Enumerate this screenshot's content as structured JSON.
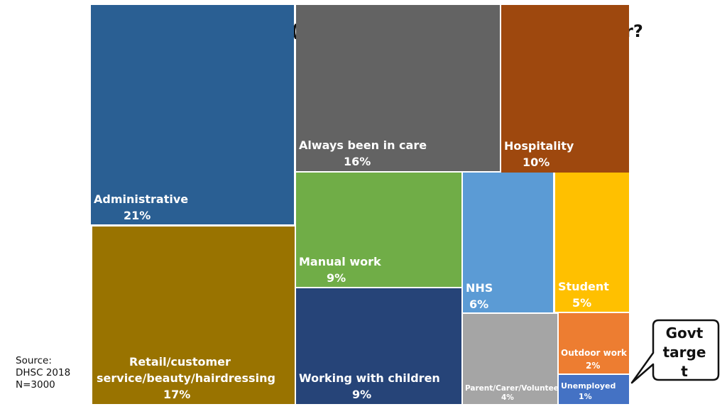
{
  "title_fragments": {
    "left": "(",
    "right": "r?"
  },
  "source": {
    "line1": "Source:",
    "line2": "DHSC 2018",
    "line3": "N=3000"
  },
  "callout": {
    "line1": "Govt",
    "line2": "targe",
    "line3": "t"
  },
  "chart_data": {
    "type": "treemap",
    "tiles": [
      {
        "name": "Administrative",
        "value": 21,
        "label": "21%",
        "color": "#2a5f93"
      },
      {
        "name": "Retail/customer service/beauty/hairdressing",
        "value": 17,
        "label": "17%",
        "color": "#997300"
      },
      {
        "name": "Always been in care",
        "value": 16,
        "label": "16%",
        "color": "#636363"
      },
      {
        "name": "Hospitality",
        "value": 10,
        "label": "10%",
        "color": "#9e480e"
      },
      {
        "name": "Manual work",
        "value": 9,
        "label": "9%",
        "color": "#70ad47"
      },
      {
        "name": "Working with children",
        "value": 9,
        "label": "9%",
        "color": "#264478"
      },
      {
        "name": "NHS",
        "value": 6,
        "label": "6%",
        "color": "#5b9bd5"
      },
      {
        "name": "Student",
        "value": 5,
        "label": "5%",
        "color": "#ffc000"
      },
      {
        "name": "Parent/Carer/Volunteer",
        "value": 4,
        "label": "4%",
        "color": "#a5a5a5"
      },
      {
        "name": "Outdoor work",
        "value": 2,
        "label": "2%",
        "color": "#ed7d31"
      },
      {
        "name": "Unemployed",
        "value": 1,
        "label": "1%",
        "color": "#4472c4"
      }
    ]
  }
}
